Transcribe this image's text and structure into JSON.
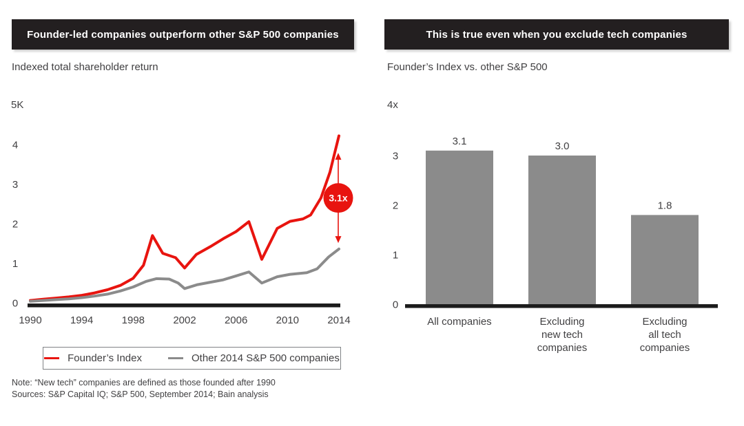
{
  "colors": {
    "red": "#e8140f",
    "gray": "#8b8b8b",
    "header_bg": "#231f20",
    "header_text": "#ffffff",
    "text": "#414042",
    "axis": "#1c1c1c"
  },
  "chart_data": [
    {
      "type": "line",
      "title": "Founder-led companies outperform other S&P 500 companies",
      "subtitle": "Indexed total shareholder return",
      "y_top_label": "5K",
      "ylim": [
        0,
        5
      ],
      "yticks": [
        0,
        1,
        2,
        3,
        4
      ],
      "xlim": [
        1990,
        2014
      ],
      "xticks": [
        1990,
        1994,
        1998,
        2002,
        2006,
        2010,
        2014
      ],
      "legend_position": "bottom",
      "series": [
        {
          "name": "Founder’s Index",
          "color": "#e8140f",
          "points": [
            [
              1990,
              0.06
            ],
            [
              1991,
              0.09
            ],
            [
              1992,
              0.12
            ],
            [
              1993,
              0.15
            ],
            [
              1994,
              0.19
            ],
            [
              1995,
              0.25
            ],
            [
              1996,
              0.33
            ],
            [
              1997,
              0.44
            ],
            [
              1998,
              0.62
            ],
            [
              1998.8,
              0.95
            ],
            [
              1999.5,
              1.7
            ],
            [
              2000.3,
              1.25
            ],
            [
              2001.3,
              1.14
            ],
            [
              2002.0,
              0.88
            ],
            [
              2002.9,
              1.22
            ],
            [
              2004,
              1.42
            ],
            [
              2005,
              1.62
            ],
            [
              2006,
              1.8
            ],
            [
              2007,
              2.05
            ],
            [
              2008,
              1.1
            ],
            [
              2009.2,
              1.88
            ],
            [
              2010.2,
              2.06
            ],
            [
              2011.2,
              2.12
            ],
            [
              2011.8,
              2.22
            ],
            [
              2012.6,
              2.65
            ],
            [
              2013.3,
              3.3
            ],
            [
              2014,
              4.22
            ]
          ]
        },
        {
          "name": "Other 2014 S&P 500 companies",
          "color": "#8b8b8b",
          "points": [
            [
              1990,
              0.04
            ],
            [
              1991,
              0.06
            ],
            [
              1992,
              0.08
            ],
            [
              1993,
              0.1
            ],
            [
              1994,
              0.13
            ],
            [
              1995,
              0.17
            ],
            [
              1996,
              0.22
            ],
            [
              1997,
              0.3
            ],
            [
              1998,
              0.4
            ],
            [
              1999,
              0.54
            ],
            [
              1999.8,
              0.61
            ],
            [
              2000.8,
              0.6
            ],
            [
              2001.5,
              0.5
            ],
            [
              2002.0,
              0.36
            ],
            [
              2003,
              0.46
            ],
            [
              2004,
              0.52
            ],
            [
              2005,
              0.58
            ],
            [
              2006,
              0.68
            ],
            [
              2007,
              0.78
            ],
            [
              2008,
              0.5
            ],
            [
              2009.2,
              0.66
            ],
            [
              2010.2,
              0.72
            ],
            [
              2011.5,
              0.76
            ],
            [
              2012.3,
              0.86
            ],
            [
              2013.2,
              1.16
            ],
            [
              2014,
              1.36
            ]
          ]
        }
      ],
      "annotation": {
        "label": "3.1x",
        "x": 2014,
        "value_top": 3.79,
        "value_bottom": 1.51,
        "color": "#e8140f"
      },
      "notes": [
        "Note: “New tech” companies are defined as those founded after 1990",
        "Sources: S&P Capital IQ; S&P 500, September 2014; Bain analysis"
      ]
    },
    {
      "type": "bar",
      "title": "This is true even when you exclude tech companies",
      "subtitle": "Founder’s Index vs. other S&P 500",
      "y_top_label": "4x",
      "ylim": [
        0,
        4
      ],
      "yticks": [
        0,
        1,
        2,
        3
      ],
      "bar_color": "#8b8b8b",
      "categories": [
        [
          "All companies"
        ],
        [
          "Excluding",
          "new tech",
          "companies"
        ],
        [
          "Excluding",
          "all tech",
          "companies"
        ]
      ],
      "values": [
        3.1,
        3.0,
        1.8
      ],
      "value_labels": [
        "3.1",
        "3.0",
        "1.8"
      ]
    }
  ]
}
